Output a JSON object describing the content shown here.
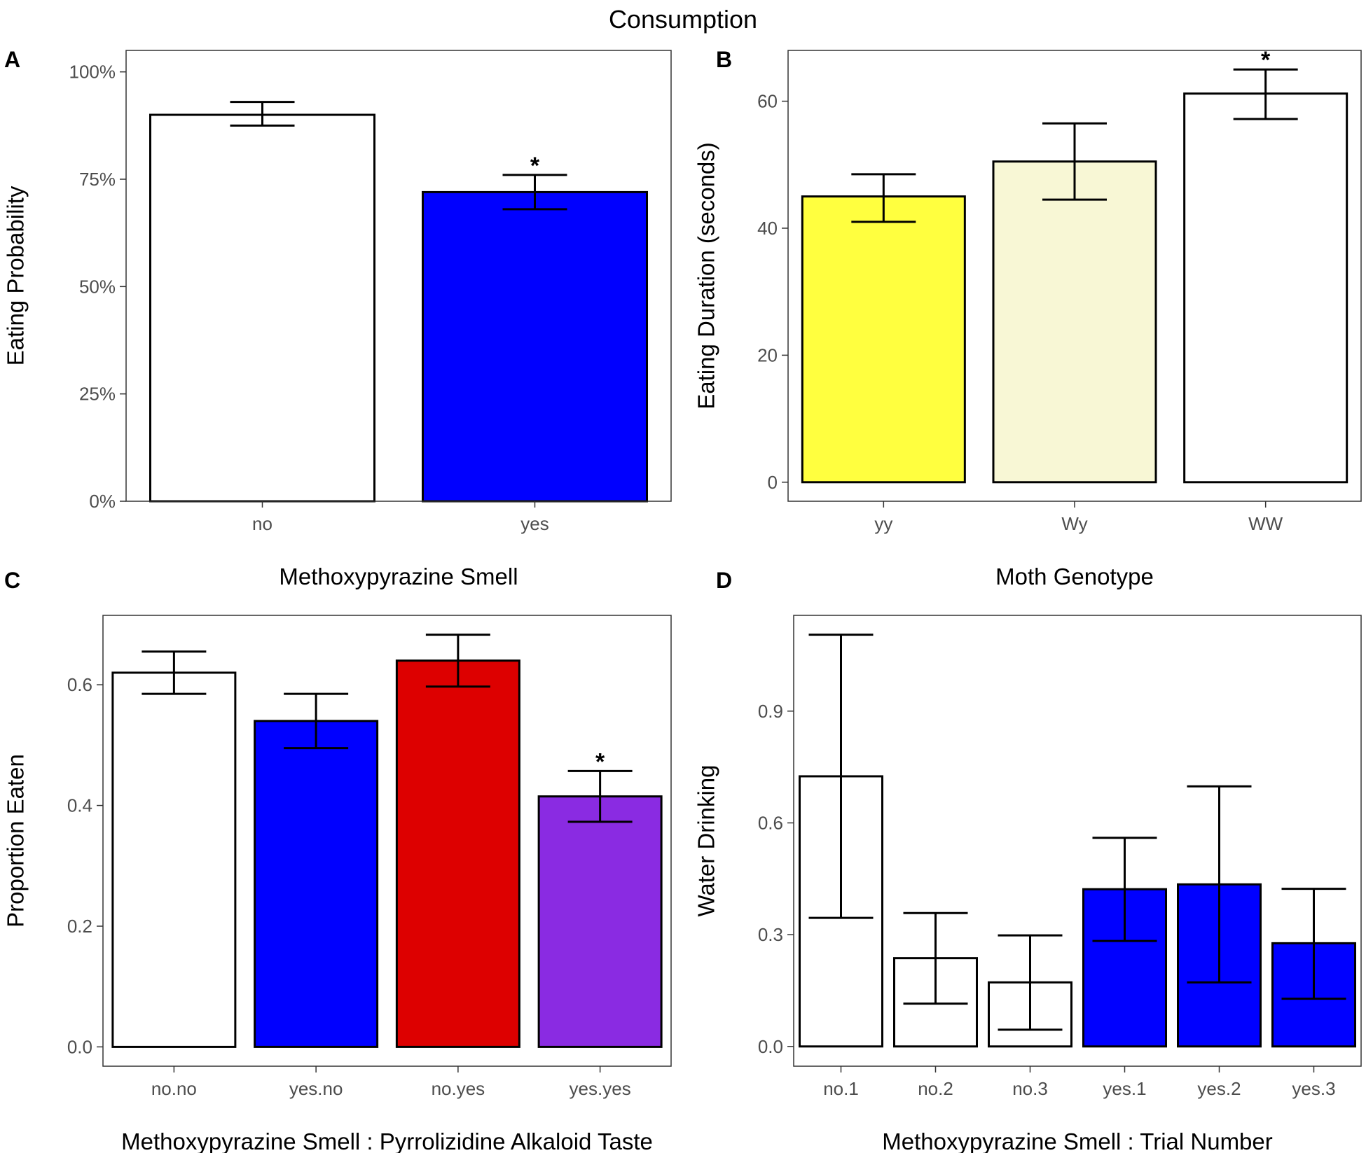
{
  "title": "Consumption",
  "chart_data": [
    {
      "panel": "A",
      "type": "bar",
      "categories": [
        "no",
        "yes"
      ],
      "values": [
        0.9,
        0.72
      ],
      "error_low": [
        0.875,
        0.68
      ],
      "error_high": [
        0.93,
        0.76
      ],
      "fills": [
        "#ffffff",
        "#0000ff"
      ],
      "significance": [
        "",
        "*"
      ],
      "ylim": [
        0,
        1.05
      ],
      "yticks": [
        0,
        0.25,
        0.5,
        0.75,
        1.0
      ],
      "ytick_labels": [
        "0%",
        "25%",
        "50%",
        "75%",
        "100%"
      ],
      "ylabel": "Eating Probability",
      "xlabel": "Methoxypyrazine Smell"
    },
    {
      "panel": "B",
      "type": "bar",
      "categories": [
        "yy",
        "Wy",
        "WW"
      ],
      "values": [
        45,
        50.5,
        61.2
      ],
      "error_low": [
        41,
        44.5,
        57.2
      ],
      "error_high": [
        48.5,
        56.5,
        65
      ],
      "fills": [
        "#ffff3f",
        "#f8f7d5",
        "#ffffff"
      ],
      "significance": [
        "",
        "",
        "*"
      ],
      "ylim": [
        -3,
        68
      ],
      "yticks": [
        0,
        20,
        40,
        60
      ],
      "ytick_labels": [
        "0",
        "20",
        "40",
        "60"
      ],
      "ylabel": "Eating Duration (seconds)",
      "xlabel": "Moth Genotype"
    },
    {
      "panel": "C",
      "type": "bar",
      "categories": [
        "no.no",
        "yes.no",
        "no.yes",
        "yes.yes"
      ],
      "values": [
        0.62,
        0.54,
        0.64,
        0.415
      ],
      "error_low": [
        0.585,
        0.495,
        0.597,
        0.373
      ],
      "error_high": [
        0.655,
        0.585,
        0.683,
        0.457
      ],
      "fills": [
        "#ffffff",
        "#0000ff",
        "#dd0000",
        "#8a2be2"
      ],
      "significance": [
        "",
        "",
        "",
        "*"
      ],
      "ylim": [
        -0.032,
        0.715
      ],
      "yticks": [
        0.0,
        0.2,
        0.4,
        0.6
      ],
      "ytick_labels": [
        "0.0",
        "0.2",
        "0.4",
        "0.6"
      ],
      "ylabel": "Proportion Eaten",
      "xlabel": "Methoxypyrazine Smell : Pyrrolizidine Alkaloid Taste"
    },
    {
      "panel": "D",
      "type": "bar",
      "categories": [
        "no.1",
        "no.2",
        "no.3",
        "yes.1",
        "yes.2",
        "yes.3"
      ],
      "values": [
        0.725,
        0.237,
        0.172,
        0.422,
        0.435,
        0.277
      ],
      "error_low": [
        0.345,
        0.115,
        0.045,
        0.283,
        0.172,
        0.128
      ],
      "error_high": [
        1.105,
        0.358,
        0.298,
        0.56,
        0.698,
        0.423
      ],
      "fills": [
        "#ffffff",
        "#ffffff",
        "#ffffff",
        "#0000ff",
        "#0000ff",
        "#0000ff"
      ],
      "significance": [
        "",
        "",
        "",
        "",
        "",
        ""
      ],
      "ylim": [
        -0.053,
        1.157
      ],
      "yticks": [
        0.0,
        0.3,
        0.6,
        0.9
      ],
      "ytick_labels": [
        "0.0",
        "0.3",
        "0.6",
        "0.9"
      ],
      "ylabel": "Water Drinking",
      "xlabel": "Methoxypyrazine Smell : Trial Number"
    }
  ]
}
